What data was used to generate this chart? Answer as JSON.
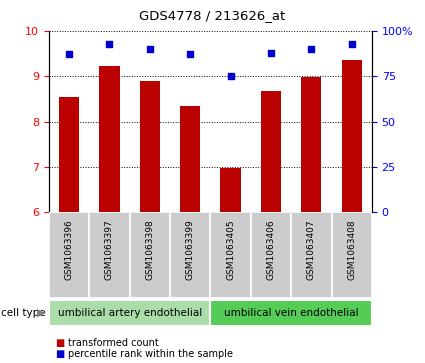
{
  "title": "GDS4778 / 213626_at",
  "samples": [
    "GSM1063396",
    "GSM1063397",
    "GSM1063398",
    "GSM1063399",
    "GSM1063405",
    "GSM1063406",
    "GSM1063407",
    "GSM1063408"
  ],
  "bar_values": [
    8.55,
    9.22,
    8.9,
    8.35,
    6.98,
    8.68,
    8.98,
    9.35
  ],
  "dot_values": [
    87,
    93,
    90,
    87,
    75,
    88,
    90,
    93
  ],
  "ylim_left": [
    6,
    10
  ],
  "ylim_right": [
    0,
    100
  ],
  "yticks_left": [
    6,
    7,
    8,
    9,
    10
  ],
  "yticks_right": [
    0,
    25,
    50,
    75,
    100
  ],
  "ytick_labels_right": [
    "0",
    "25",
    "50",
    "75",
    "100%"
  ],
  "bar_color": "#bb0000",
  "dot_color": "#0000cc",
  "grid_color": "#000000",
  "cell_type_groups": [
    {
      "label": "umbilical artery endothelial",
      "start": 0,
      "end": 4,
      "color": "#aaddaa"
    },
    {
      "label": "umbilical vein endothelial",
      "start": 4,
      "end": 8,
      "color": "#55cc55"
    }
  ],
  "cell_type_label": "cell type",
  "legend_bar_label": "transformed count",
  "legend_dot_label": "percentile rank within the sample",
  "background_color": "#ffffff",
  "plot_bg_color": "#ffffff",
  "sample_bg_color": "#cccccc",
  "bar_width": 0.5
}
